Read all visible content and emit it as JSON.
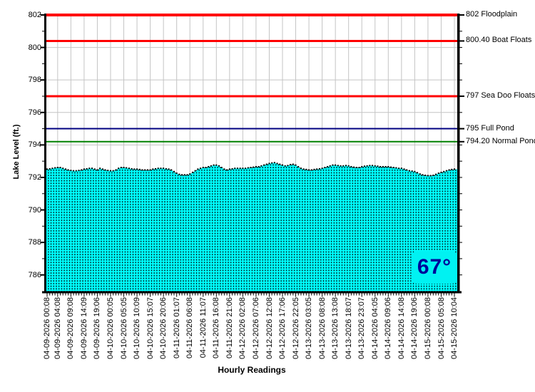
{
  "chart_data": {
    "type": "area",
    "title": "",
    "xlabel": "Hourly Readings",
    "ylabel": "Lake Level (ft.)",
    "ylim": [
      785,
      802
    ],
    "grid": true,
    "y_tick_labels": [
      786,
      788,
      790,
      792,
      794,
      796,
      798,
      800,
      802
    ],
    "x_tick_labels": [
      "04-09-2026 00:08",
      "04-09-2026 04:08",
      "04-09-2026 09:08",
      "04-09-2026 14:09",
      "04-09-2026 19:06",
      "04-10-2026 00:05",
      "04-10-2026 05:05",
      "04-10-2026 10:09",
      "04-10-2026 15:07",
      "04-10-2026 20:06",
      "04-11-2026 01:07",
      "04-11-2026 06:08",
      "04-11-2026 11:07",
      "04-11-2026 16:08",
      "04-11-2026 21:06",
      "04-12-2026 02:08",
      "04-12-2026 07:06",
      "04-12-2026 12:08",
      "04-12-2026 17:06",
      "04-12-2026 22:05",
      "04-13-2026 03:05",
      "04-13-2026 08:08",
      "04-13-2026 13:08",
      "04-13-2026 18:07",
      "04-13-2026 23:07",
      "04-14-2026 04:05",
      "04-14-2026 09:06",
      "04-14-2026 14:08",
      "04-14-2026 19:06",
      "04-15-2026 00:08",
      "04-15-2026 05:08",
      "04-15-2026 10:04"
    ],
    "x_tick_hours": [
      0,
      4,
      9,
      14,
      19,
      24,
      29,
      34,
      39,
      44,
      49,
      54,
      59,
      64,
      69,
      74,
      79,
      84,
      89,
      94,
      99,
      104,
      109,
      114,
      119,
      124,
      129,
      134,
      139,
      144,
      149,
      154
    ],
    "series": [
      {
        "name": "Lake Level (ft.)",
        "fill_color": "#00FFFF",
        "marker_color": "#000000",
        "values": [
          792.5,
          792.52,
          792.55,
          792.58,
          792.6,
          792.6,
          792.55,
          792.5,
          792.45,
          792.42,
          792.4,
          792.4,
          792.42,
          792.45,
          792.5,
          792.52,
          792.55,
          792.55,
          792.5,
          792.45,
          792.55,
          792.5,
          792.45,
          792.42,
          792.4,
          792.4,
          792.45,
          792.55,
          792.6,
          792.6,
          792.58,
          792.55,
          792.52,
          792.5,
          792.5,
          792.48,
          792.45,
          792.45,
          792.45,
          792.45,
          792.5,
          792.52,
          792.55,
          792.55,
          792.55,
          792.52,
          792.5,
          792.45,
          792.35,
          792.25,
          792.18,
          792.15,
          792.15,
          792.15,
          792.2,
          792.3,
          792.4,
          792.5,
          792.55,
          792.6,
          792.6,
          792.65,
          792.7,
          792.75,
          792.75,
          792.7,
          792.6,
          792.5,
          792.45,
          792.5,
          792.52,
          792.55,
          792.55,
          792.55,
          792.55,
          792.55,
          792.58,
          792.6,
          792.62,
          792.65,
          792.65,
          792.7,
          792.75,
          792.8,
          792.85,
          792.88,
          792.9,
          792.85,
          792.8,
          792.75,
          792.7,
          792.72,
          792.78,
          792.8,
          792.75,
          792.65,
          792.55,
          792.5,
          792.48,
          792.45,
          792.45,
          792.48,
          792.5,
          792.52,
          792.55,
          792.6,
          792.65,
          792.7,
          792.75,
          792.75,
          792.72,
          792.7,
          792.7,
          792.72,
          792.7,
          792.65,
          792.62,
          792.6,
          792.6,
          792.65,
          792.68,
          792.7,
          792.72,
          792.72,
          792.7,
          792.68,
          792.65,
          792.65,
          792.65,
          792.65,
          792.62,
          792.6,
          792.58,
          792.55,
          792.55,
          792.5,
          792.45,
          792.4,
          792.38,
          792.35,
          792.28,
          792.2,
          792.15,
          792.12,
          792.1,
          792.1,
          792.12,
          792.18,
          792.25,
          792.3,
          792.35,
          792.4,
          792.45,
          792.48,
          792.5
        ]
      }
    ],
    "reference_lines": [
      {
        "value": 802,
        "label": "802 Floodplain",
        "color": "#FF0000",
        "width": 4
      },
      {
        "value": 800.4,
        "label": "800.40 Boat Floats",
        "color": "#FF0000",
        "width": 3
      },
      {
        "value": 797,
        "label": "797 Sea Doo Floats",
        "color": "#FF0000",
        "width": 3
      },
      {
        "value": 795,
        "label": "795 Full Pond",
        "color": "#000080",
        "width": 2
      },
      {
        "value": 794.2,
        "label": "794.20 Normal Pond",
        "color": "#008000",
        "width": 2
      }
    ],
    "temperature_badge": {
      "value": "67°",
      "text_color": "#000099",
      "bg_color": "#00F2F2"
    },
    "colors": {
      "grid": "#C4C4C4",
      "axis": "#000000",
      "background": "#FFFFFF"
    }
  }
}
